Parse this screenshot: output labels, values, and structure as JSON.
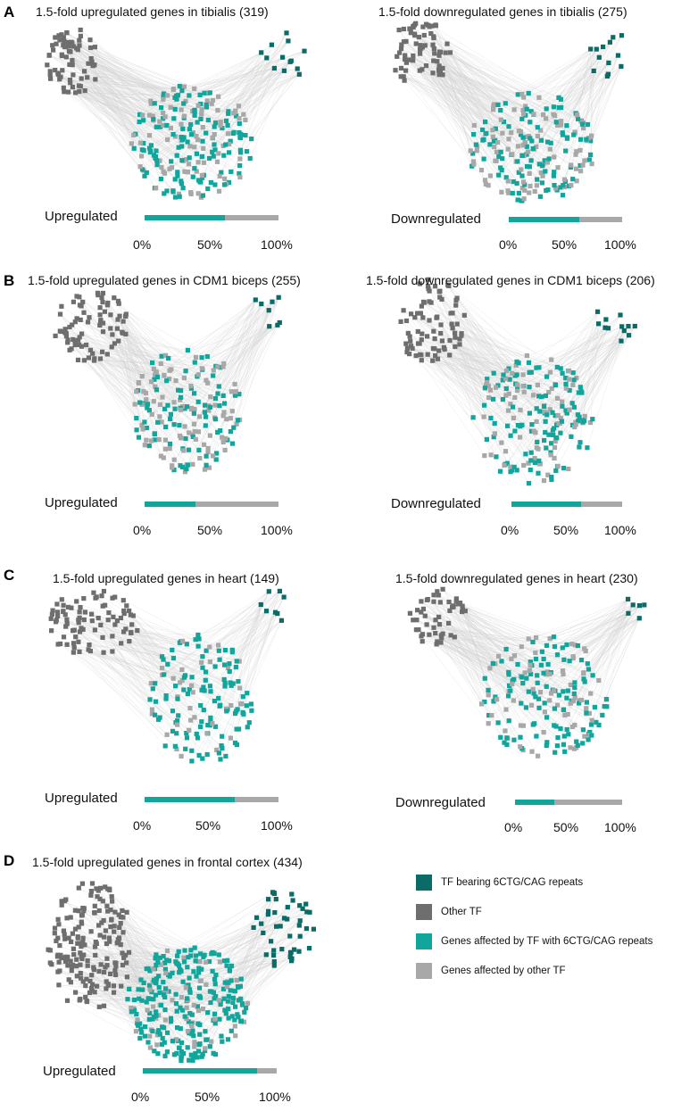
{
  "colors": {
    "tf_repeat": "#0b6b66",
    "other_tf": "#6e6e6e",
    "gene_repeat": "#11a59b",
    "gene_other": "#a8a8a8",
    "edge": "#cfcfcf"
  },
  "ticks": [
    "0%",
    "50%",
    "100%"
  ],
  "panels": [
    {
      "id": "A",
      "title": "1.5-fold upregulated genes in tibialis (319)",
      "direction": "Upregulated",
      "fraction": 0.6
    },
    {
      "id": "",
      "title": "1.5-fold downregulated genes in tibialis (275)",
      "direction": "Downregulated",
      "fraction": 0.62
    },
    {
      "id": "B",
      "title": "1.5-fold upregulated genes in CDM1 biceps (255)",
      "direction": "Upregulated",
      "fraction": 0.38
    },
    {
      "id": "",
      "title": "1.5-fold downregulated genes in CDM1 biceps (206)",
      "direction": "Downregulated",
      "fraction": 0.63
    },
    {
      "id": "C",
      "title": "1.5-fold upregulated genes in heart (149)",
      "direction": "Upregulated",
      "fraction": 0.67
    },
    {
      "id": "",
      "title": "1.5-fold downregulated genes in heart (230)",
      "direction": "Downregulated",
      "fraction": 0.37
    },
    {
      "id": "D",
      "title": "1.5-fold upregulated genes in frontal cortex (434)",
      "direction": "Upregulated",
      "fraction": 0.85
    }
  ],
  "legend": [
    {
      "label": "TF bearing 6CTG/CAG repeats",
      "color": "#0b6b66"
    },
    {
      "label": "Other TF",
      "color": "#6e6e6e"
    },
    {
      "label": "Genes affected by TF with 6CTG/CAG repeats",
      "color": "#11a59b"
    },
    {
      "label": "Genes affected by other TF",
      "color": "#a8a8a8"
    }
  ]
}
